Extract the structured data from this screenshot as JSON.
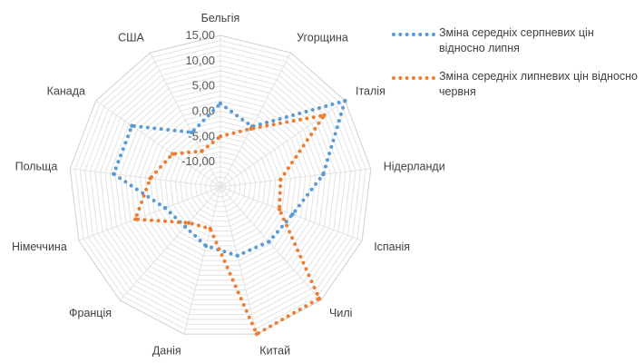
{
  "chart_data": {
    "type": "radar",
    "title": "",
    "categories": [
      "Бельгія",
      "Угорщина",
      "Італія",
      "Нідерланди",
      "Іспанія",
      "Чилі",
      "Китай",
      "Данія",
      "Франція",
      "Німеччина",
      "Польща",
      "Канада",
      "США"
    ],
    "tick_labels": [
      "-10,00",
      "-5,00",
      "0,00",
      "5,00",
      "10,00",
      "15,00"
    ],
    "rlim": [
      -15,
      15
    ],
    "grid_step": 1,
    "legend_position": "right",
    "series": [
      {
        "name": "Зміна середніх серпневих цін відносно липня",
        "color": "#5B9BD5",
        "values": [
          1.5,
          -1.5,
          15.0,
          5.5,
          0.3,
          -0.5,
          -1.0,
          -3.0,
          -4.5,
          -3.3,
          6.3,
          6.3,
          -2.8
        ]
      },
      {
        "name": "Зміна середніх липневих цін відносно червня",
        "color": "#ED7D31",
        "values": [
          -5.0,
          -2.0,
          10.0,
          -3.0,
          -2.5,
          14.5,
          15.0,
          -6.5,
          -5.5,
          3.0,
          -1.0,
          -3.5,
          -7.0
        ]
      }
    ]
  }
}
